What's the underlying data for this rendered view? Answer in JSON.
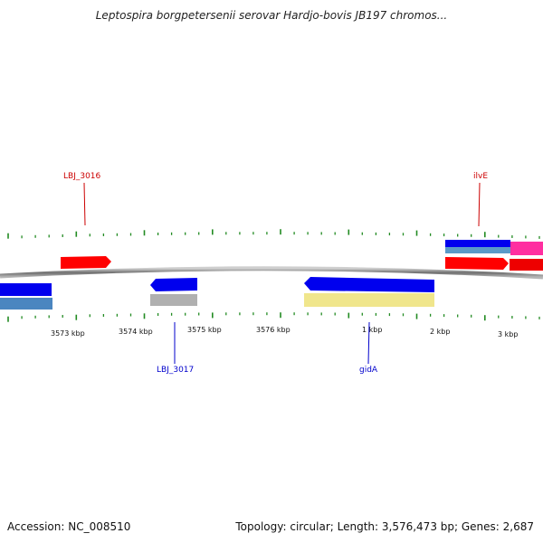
{
  "title": "Leptospira borgpetersenii serovar Hardjo-bovis JB197 chromos...",
  "footer": {
    "accession": "Accession: NC_008510",
    "summary": "Topology: circular; Length: 3,576,473 bp; Genes: 2,687"
  },
  "colors": {
    "backbone": "#777777",
    "tick": "#228B22",
    "forward_label": "#cc0000",
    "reverse_label": "#0000cc"
  },
  "ruler": {
    "labels": [
      "3573 kbp",
      "3574 kbp",
      "3575 kbp",
      "3576 kbp",
      "1 kbp",
      "2 kbp",
      "3 kbp"
    ]
  },
  "gene_labels": {
    "lbj3016": "LBJ_3016",
    "ilve": "ilvE",
    "lbj3017": "LBJ_3017",
    "gida": "gidA"
  },
  "features": {
    "lbj3016_cds": "#ff0000",
    "ilve_gene": "#0000ee",
    "ilve_rna": "#5a9ac8",
    "ilve_cds": "#ff0000",
    "pink_gene": "#ff2fa0",
    "pink_cds": "#ee0000",
    "left_gene": "#0000ee",
    "left_rna": "#4a86c0",
    "lbj3017_gene": "#0000ee",
    "lbj3017_cds": "#b0b0b0",
    "gida_gene": "#0000ee",
    "gida_cds": "#f0e68c"
  }
}
